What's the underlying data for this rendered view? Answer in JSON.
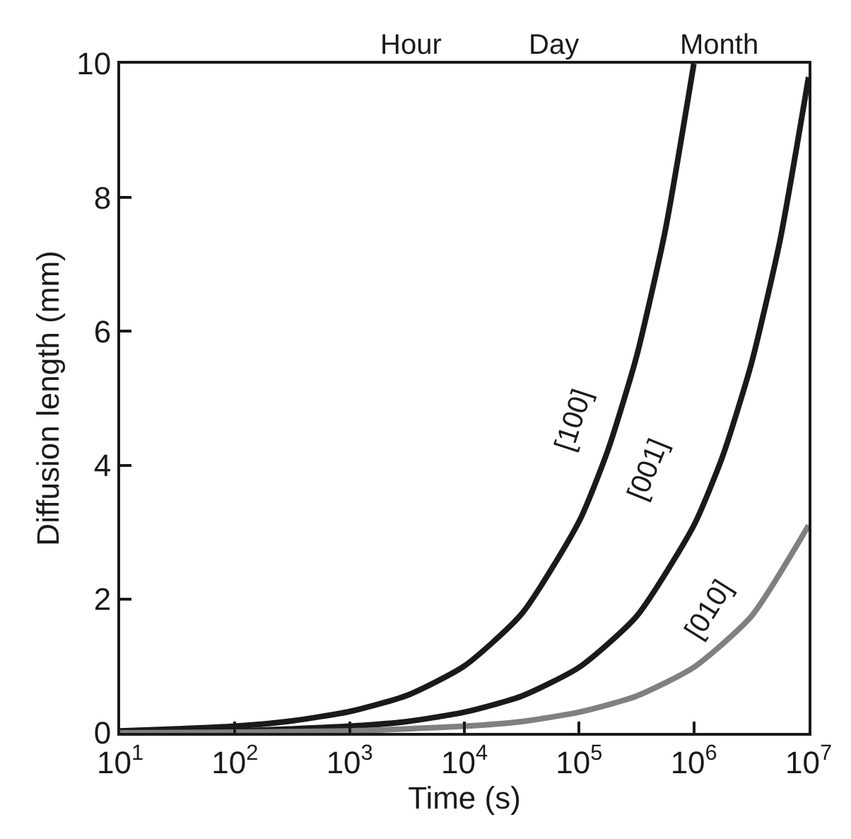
{
  "chart_data": {
    "type": "line",
    "xlabel": "Time (s)",
    "ylabel": "Diffusion length (mm)",
    "log": "x",
    "xlim": [
      10,
      10000000
    ],
    "xticks": [
      {
        "value": 10,
        "label": "10$^{1}$"
      },
      {
        "value": 100,
        "label": "10$^{2}$"
      },
      {
        "value": 1000,
        "label": "10$^{3}$"
      },
      {
        "value": 10000,
        "label": "10$^{4}$"
      },
      {
        "value": 100000,
        "label": "10$^{5}$"
      },
      {
        "value": 1000000,
        "label": "10$^{6}$"
      },
      {
        "value": 10000000,
        "label": "10$^{7}$"
      }
    ],
    "ylim": [
      0,
      10
    ],
    "yticks": [
      0,
      2,
      4,
      6,
      8,
      10
    ],
    "marker": "none",
    "line_style": "solid",
    "series": [
      {
        "color": "#1a1a1a",
        "x": [
          10,
          32,
          100,
          316,
          1000,
          3162,
          10000,
          31623,
          100000,
          177828,
          316228,
          562341,
          1000000
        ],
        "values": [
          0.03,
          0.06,
          0.1,
          0.18,
          0.32,
          0.56,
          1.0,
          1.78,
          3.16,
          4.22,
          5.62,
          7.5,
          10
        ]
      },
      {
        "color": "#1a1a1a",
        "x": [
          10,
          100,
          1000,
          3162,
          10000,
          31623,
          100000,
          316228,
          1000000,
          1778279,
          3162278,
          5623413,
          10000000
        ],
        "values": [
          0.01,
          0.03,
          0.1,
          0.17,
          0.31,
          0.55,
          0.98,
          1.74,
          3.1,
          4.13,
          5.51,
          7.35,
          9.8
        ]
      },
      {
        "color": "#808080",
        "x": [
          10,
          100,
          1000,
          10000,
          31623,
          100000,
          316228,
          1000000,
          3162278,
          10000000
        ],
        "values": [
          0,
          0.01,
          0.03,
          0.1,
          0.17,
          0.31,
          0.55,
          0.98,
          1.74,
          3.1
        ]
      }
    ],
    "annotations": [
      "Hour",
      "Day",
      "Month",
      "[100]",
      "[001]",
      "[010]"
    ]
  }
}
